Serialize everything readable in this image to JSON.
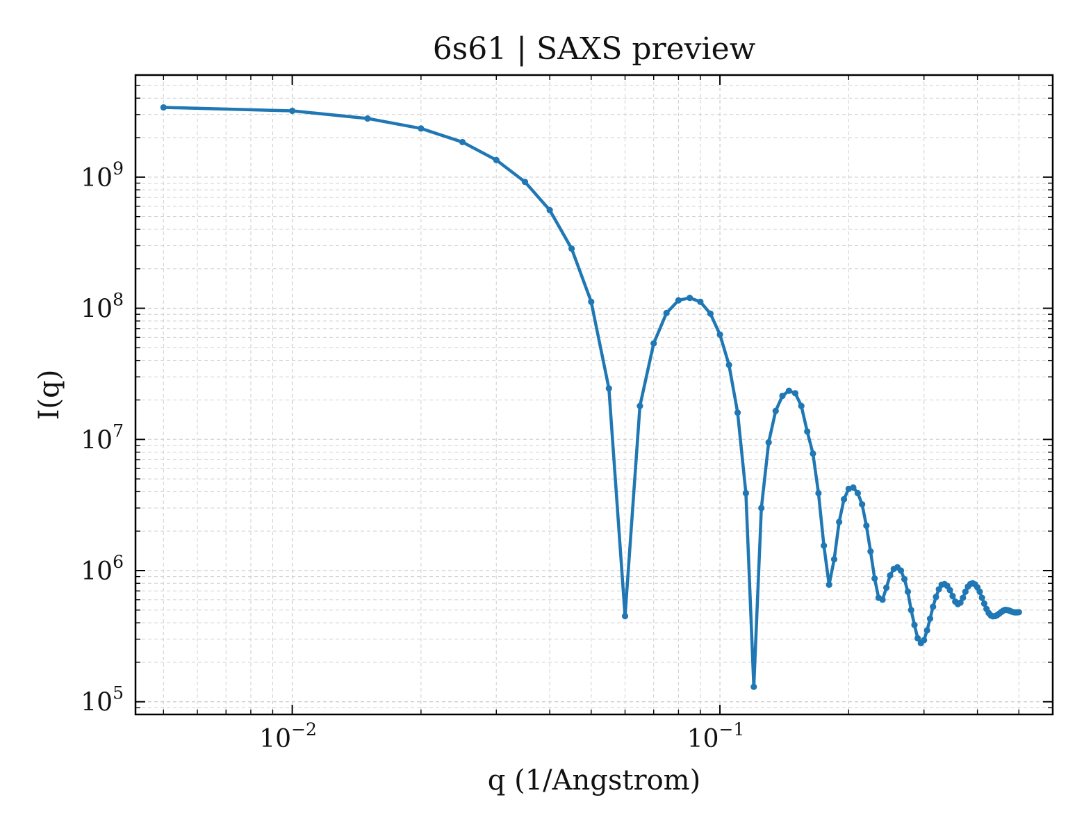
{
  "chart_data": {
    "type": "line",
    "title": "6s61 | SAXS preview",
    "xlabel": "q (1/Angstrom)",
    "ylabel": "I(q)",
    "xscale": "log",
    "yscale": "log",
    "xlim": [
      0.0043,
      0.6
    ],
    "ylim": [
      80000,
      6000000000
    ],
    "grid": true,
    "legend": "none",
    "color": "#1f77b4",
    "x_ticks": [
      {
        "base": "10",
        "exp": "−2"
      },
      {
        "base": "10",
        "exp": "−1"
      }
    ],
    "y_ticks": [
      {
        "base": "10",
        "exp": "5"
      },
      {
        "base": "10",
        "exp": "6"
      },
      {
        "base": "10",
        "exp": "7"
      },
      {
        "base": "10",
        "exp": "8"
      },
      {
        "base": "10",
        "exp": "9"
      }
    ],
    "series": [
      {
        "x": [
          0.005,
          0.01,
          0.015,
          0.02,
          0.025,
          0.03,
          0.035,
          0.04,
          0.045,
          0.05,
          0.055,
          0.06,
          0.065,
          0.07,
          0.075,
          0.08,
          0.085,
          0.09,
          0.095,
          0.1,
          0.105,
          0.11,
          0.115,
          0.12,
          0.125,
          0.13,
          0.135,
          0.14,
          0.145,
          0.15,
          0.155,
          0.16,
          0.165,
          0.17,
          0.175,
          0.18,
          0.185,
          0.19,
          0.195,
          0.2,
          0.205,
          0.21,
          0.215,
          0.22,
          0.225,
          0.23,
          0.235,
          0.24,
          0.245,
          0.25,
          0.255,
          0.26,
          0.265,
          0.27,
          0.275,
          0.28,
          0.285,
          0.29,
          0.295,
          0.3,
          0.305,
          0.31,
          0.315,
          0.32,
          0.325,
          0.33,
          0.335,
          0.34,
          0.345,
          0.35,
          0.355,
          0.36,
          0.365,
          0.37,
          0.375,
          0.38,
          0.385,
          0.39,
          0.395,
          0.4,
          0.405,
          0.41,
          0.415,
          0.42,
          0.425,
          0.43,
          0.435,
          0.44,
          0.445,
          0.45,
          0.455,
          0.46,
          0.465,
          0.47,
          0.475,
          0.48,
          0.485,
          0.49,
          0.495,
          0.5
        ],
        "y": [
          3400000000,
          3200000000,
          2800000000,
          2350000000,
          1850000000,
          1350000000,
          920000000,
          560000000,
          285000000,
          112000000,
          24500000,
          450000,
          18000000,
          54000000,
          92000000,
          115000000,
          120000000,
          112000000,
          91000000,
          63000000,
          37000000,
          16000000,
          3900000,
          130000,
          3000000,
          9500000,
          16500000,
          21500000,
          23500000,
          22500000,
          18000000,
          11500000,
          7800000,
          3900000,
          1550000,
          780000,
          1220000,
          2350000,
          3500000,
          4200000,
          4300000,
          3900000,
          3200000,
          2200000,
          1400000,
          870000,
          620000,
          600000,
          740000,
          920000,
          1030000,
          1060000,
          1000000,
          860000,
          690000,
          500000,
          385000,
          305000,
          280000,
          295000,
          350000,
          430000,
          530000,
          630000,
          720000,
          780000,
          790000,
          765000,
          710000,
          640000,
          580000,
          555000,
          570000,
          620000,
          690000,
          755000,
          790000,
          800000,
          785000,
          745000,
          690000,
          620000,
          560000,
          510000,
          475000,
          455000,
          448000,
          450000,
          458000,
          470000,
          484000,
          496000,
          502000,
          500000,
          495000,
          488000,
          482000,
          480000,
          480000,
          482000
        ]
      }
    ]
  }
}
